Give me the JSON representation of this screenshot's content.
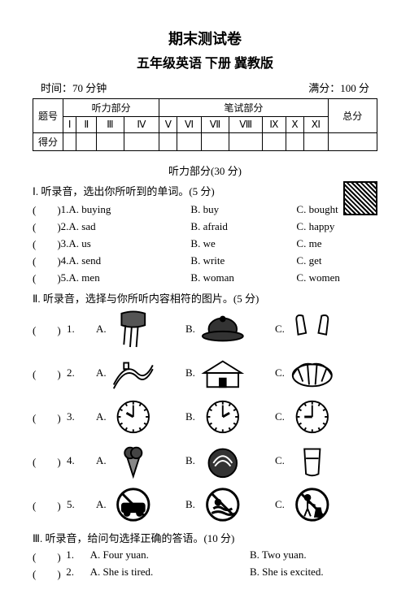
{
  "header": {
    "title1": "期末测试卷",
    "title2": "五年级英语 下册 冀教版",
    "time_label": "时间：70 分钟",
    "full_label": "满分：100 分"
  },
  "score_table": {
    "row_label_1": "题号",
    "row_label_2": "得分",
    "listen_header": "听力部分",
    "write_header": "笔试部分",
    "total_header": "总分",
    "cols": [
      "Ⅰ",
      "Ⅱ",
      "Ⅲ",
      "Ⅳ",
      "Ⅴ",
      "Ⅵ",
      "Ⅶ",
      "Ⅷ",
      "Ⅸ",
      "Ⅹ",
      "Ⅺ"
    ]
  },
  "listening_header": "听力部分(30 分)",
  "s1": {
    "instr": "Ⅰ. 听录音，选出你所听到的单词。(5 分)",
    "items": [
      {
        "n": "1.",
        "a": "A. buying",
        "b": "B. buy",
        "c": "C. bought"
      },
      {
        "n": "2.",
        "a": "A. sad",
        "b": "B. afraid",
        "c": "C. happy"
      },
      {
        "n": "3.",
        "a": "A. us",
        "b": "B. we",
        "c": "C. me"
      },
      {
        "n": "4.",
        "a": "A. send",
        "b": "B. write",
        "c": "C. get"
      },
      {
        "n": "5.",
        "a": "A. men",
        "b": "B. woman",
        "c": "C. women"
      }
    ]
  },
  "s2": {
    "instr": "Ⅱ. 听录音，选择与你所听内容相符的图片。(5 分)",
    "rows": [
      {
        "n": "1.",
        "a": "A.",
        "b": "B.",
        "c": "C."
      },
      {
        "n": "2.",
        "a": "A.",
        "b": "B.",
        "c": "C."
      },
      {
        "n": "3.",
        "a": "A.",
        "b": "B.",
        "c": "C."
      },
      {
        "n": "4.",
        "a": "A.",
        "b": "B.",
        "c": "C."
      },
      {
        "n": "5.",
        "a": "A.",
        "b": "B.",
        "c": "C."
      }
    ],
    "icons": [
      [
        "scarf",
        "cap",
        "gloves"
      ],
      [
        "greatwall",
        "palace",
        "stadium"
      ],
      [
        "clock-10",
        "clock-2",
        "clock-9"
      ],
      [
        "icecream",
        "watermelon",
        "water"
      ],
      [
        "no-car",
        "no-swim",
        "no-litter"
      ]
    ]
  },
  "s3": {
    "instr": "Ⅲ. 听录音，给问句选择正确的答语。(10 分)",
    "items": [
      {
        "n": "1.",
        "a": "A. Four yuan.",
        "b": "B. Two yuan."
      },
      {
        "n": "2.",
        "a": "A. She is tired.",
        "b": "B. She is excited."
      }
    ]
  },
  "paren": "(　　)"
}
